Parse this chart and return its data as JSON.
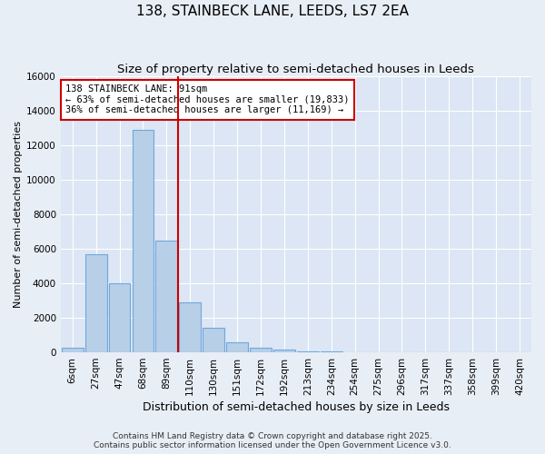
{
  "title": "138, STAINBECK LANE, LEEDS, LS7 2EA",
  "subtitle": "Size of property relative to semi-detached houses in Leeds",
  "xlabel": "Distribution of semi-detached houses by size in Leeds",
  "ylabel": "Number of semi-detached properties",
  "footer_line1": "Contains HM Land Registry data © Crown copyright and database right 2025.",
  "footer_line2": "Contains public sector information licensed under the Open Government Licence v3.0.",
  "annotation_title": "138 STAINBECK LANE: 91sqm",
  "annotation_line1": "← 63% of semi-detached houses are smaller (19,833)",
  "annotation_line2": "36% of semi-detached houses are larger (11,169) →",
  "bin_labels": [
    "6sqm",
    "27sqm",
    "47sqm",
    "68sqm",
    "89sqm",
    "110sqm",
    "130sqm",
    "151sqm",
    "172sqm",
    "192sqm",
    "213sqm",
    "234sqm",
    "254sqm",
    "275sqm",
    "296sqm",
    "317sqm",
    "337sqm",
    "358sqm",
    "399sqm",
    "420sqm"
  ],
  "bin_values": [
    280,
    5700,
    4000,
    12900,
    6500,
    2900,
    1450,
    600,
    280,
    150,
    50,
    30,
    10,
    0,
    0,
    0,
    0,
    0,
    0,
    0
  ],
  "bar_color": "#b8cfe8",
  "bar_edge_color": "#6fa8dc",
  "vline_color": "#cc0000",
  "vline_pos": 4.5,
  "annotation_box_color": "#cc0000",
  "ylim": [
    0,
    16000
  ],
  "yticks": [
    0,
    2000,
    4000,
    6000,
    8000,
    10000,
    12000,
    14000,
    16000
  ],
  "background_color": "#e8eef6",
  "plot_background": "#dce6f4",
  "grid_color": "#ffffff",
  "title_fontsize": 11,
  "subtitle_fontsize": 9.5,
  "ylabel_fontsize": 8,
  "xlabel_fontsize": 9,
  "tick_fontsize": 7.5,
  "footer_fontsize": 6.5
}
